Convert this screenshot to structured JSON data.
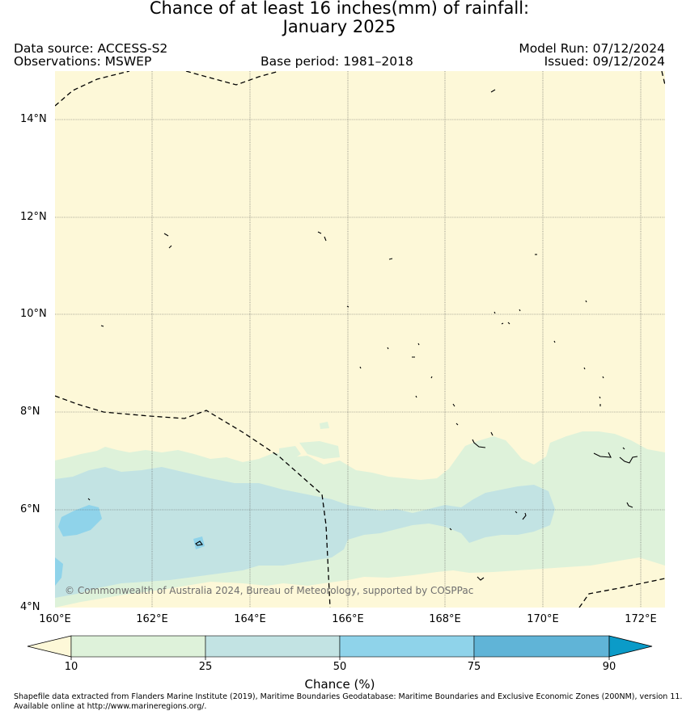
{
  "header": {
    "title_line1": "Chance of at least 16 inches(mm) of rainfall:",
    "title_line2": "January 2025",
    "data_source": "Data source: ACCESS-S2",
    "observations": "Observations: MSWEP",
    "base_period": "Base period: 1981–2018",
    "model_run": "Model Run: 07/12/2024",
    "issued": "Issued: 09/12/2024"
  },
  "map": {
    "lon_range": [
      160,
      172.5
    ],
    "lat_range": [
      4,
      15
    ],
    "lat_ticks": [
      "14°N",
      "12°N",
      "10°N",
      "8°N",
      "6°N",
      "4°N"
    ],
    "lon_ticks": [
      "160°E",
      "162°E",
      "164°E",
      "166°E",
      "168°E",
      "170°E",
      "172°E"
    ],
    "copyright": "© Commonwealth of Australia 2024, Bureau of Meteorology, supported by COSPPac",
    "colors": {
      "below_10": "#fdf8d8",
      "c10_25": "#def2da",
      "c25_50": "#c2e3e3",
      "c50_75": "#8fd3ea",
      "c75_90": "#60b4d7",
      "above_90": "#0b9bc8",
      "boundary": "#000000",
      "grid": "#555555"
    }
  },
  "colorbar": {
    "ticks": [
      "10",
      "25",
      "50",
      "75",
      "90"
    ],
    "label": "Chance (%)"
  },
  "footer": {
    "line1": "Shapefile data extracted from Flanders Marine Institute (2019), Maritime Boundaries Geodatabase: Maritime Boundaries and Exclusive Economic Zones (200NM), version 11.",
    "line2": "Available online at http://www.marineregions.org/."
  }
}
